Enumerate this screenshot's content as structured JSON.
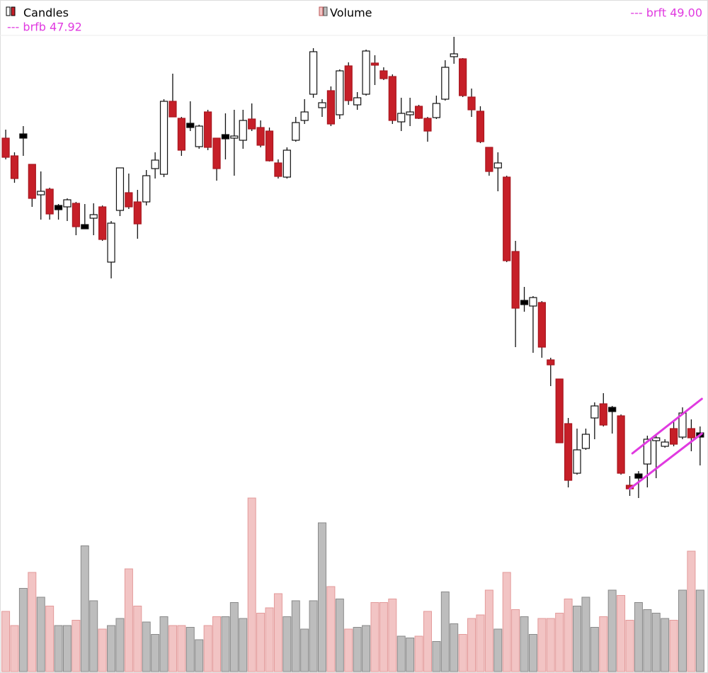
{
  "chart_data": {
    "type": "candlestick",
    "xlim": [
      -0.65,
      79.9
    ],
    "ylim": [
      46,
      59.5
    ],
    "y2lim": [
      0,
      10
    ],
    "series": [
      {
        "name": "Candles",
        "up_color": "#ffffff",
        "down_color": "#c61f28",
        "open": [
          56.18,
          55.68,
          56.24,
          55.44,
          54.58,
          54.74,
          54.22,
          54.24,
          54.34,
          53.68,
          53.92,
          54.24,
          52.68,
          54.14,
          54.64,
          54.38,
          54.38,
          55.32,
          55.16,
          57.22,
          56.74,
          56.54,
          55.94,
          56.92,
          56.18,
          56.22,
          56.18,
          56.12,
          56.72,
          56.48,
          56.38,
          55.48,
          55.08,
          56.12,
          56.68,
          57.42,
          57.04,
          57.52,
          56.84,
          58.22,
          57.12,
          57.42,
          58.3,
          58.08,
          57.92,
          56.64,
          56.84,
          57.08,
          56.74,
          56.76,
          57.28,
          58.48,
          58.42,
          57.34,
          56.94,
          55.92,
          55.34,
          55.08,
          52.98,
          51.54,
          51.44,
          51.54,
          49.92,
          49.38,
          48.12,
          46.72,
          47.42,
          48.28,
          48.68,
          48.52,
          48.34,
          46.38,
          46.64,
          46.98,
          47.64,
          47.48,
          47.98,
          47.74,
          47.98,
          47.8
        ],
        "high": [
          56.42,
          55.78,
          56.52,
          55.44,
          55.24,
          54.78,
          54.32,
          54.48,
          54.38,
          54.32,
          54.34,
          54.28,
          53.84,
          55.34,
          55.18,
          54.72,
          55.28,
          55.78,
          57.28,
          58.0,
          56.78,
          57.22,
          56.56,
          56.98,
          56.18,
          56.88,
          56.98,
          56.98,
          57.16,
          56.68,
          56.48,
          55.58,
          55.92,
          56.78,
          57.28,
          58.72,
          57.28,
          57.64,
          58.12,
          58.32,
          57.48,
          58.68,
          58.52,
          58.18,
          57.98,
          57.32,
          57.32,
          57.12,
          56.78,
          57.38,
          58.38,
          59.04,
          58.44,
          57.58,
          57.08,
          55.92,
          55.78,
          55.12,
          53.28,
          51.98,
          51.72,
          51.58,
          49.98,
          49.38,
          48.28,
          47.98,
          47.98,
          48.72,
          48.98,
          48.62,
          48.38,
          46.64,
          46.78,
          47.78,
          47.78,
          47.68,
          48.18,
          48.58,
          48.24,
          48.04
        ],
        "low": [
          55.58,
          54.92,
          55.68,
          54.24,
          53.88,
          53.88,
          53.88,
          53.84,
          53.44,
          53.62,
          53.44,
          53.28,
          52.22,
          53.98,
          54.18,
          53.34,
          54.28,
          55.04,
          55.08,
          56.78,
          55.68,
          56.38,
          55.88,
          55.84,
          54.98,
          55.58,
          55.12,
          55.88,
          56.38,
          55.92,
          55.52,
          55.04,
          55.04,
          56.08,
          56.58,
          57.32,
          56.78,
          56.52,
          56.72,
          57.12,
          56.98,
          57.38,
          57.68,
          57.82,
          56.58,
          56.38,
          56.52,
          56.72,
          56.08,
          56.72,
          57.24,
          58.28,
          57.34,
          56.78,
          56.04,
          55.12,
          54.68,
          52.68,
          50.28,
          51.28,
          50.12,
          49.98,
          49.18,
          47.58,
          46.32,
          46.68,
          47.38,
          47.68,
          48.04,
          47.84,
          46.68,
          46.08,
          46.02,
          46.32,
          46.58,
          47.44,
          47.48,
          47.68,
          47.34,
          46.94
        ],
        "close": [
          55.64,
          55.04,
          56.24,
          54.48,
          54.68,
          54.04,
          54.22,
          54.44,
          53.68,
          53.68,
          54.02,
          53.32,
          53.78,
          55.34,
          54.24,
          53.76,
          55.12,
          55.56,
          57.22,
          56.78,
          55.84,
          56.54,
          56.52,
          55.92,
          55.32,
          56.22,
          56.24,
          56.68,
          56.44,
          55.98,
          55.54,
          55.1,
          55.84,
          56.62,
          56.92,
          58.62,
          57.18,
          56.58,
          58.08,
          57.24,
          57.32,
          58.64,
          58.24,
          57.86,
          56.68,
          56.88,
          56.92,
          56.74,
          56.38,
          57.16,
          58.18,
          58.56,
          57.38,
          56.98,
          56.08,
          55.24,
          55.48,
          52.72,
          51.38,
          51.54,
          51.68,
          50.28,
          49.78,
          47.58,
          46.52,
          47.38,
          47.82,
          48.62,
          48.08,
          48.52,
          46.72,
          46.28,
          46.64,
          47.68,
          47.72,
          47.6,
          47.54,
          48.42,
          47.72,
          47.8
        ]
      },
      {
        "name": "Volume",
        "axis": "y2",
        "up_color": "#bdbdbd",
        "down_color": "#f2c4c4",
        "values": [
          3.4,
          2.6,
          4.7,
          5.6,
          4.2,
          3.7,
          2.6,
          2.6,
          2.9,
          7.1,
          4.0,
          2.4,
          2.6,
          3.0,
          5.8,
          3.7,
          2.8,
          2.1,
          3.1,
          2.6,
          2.6,
          2.5,
          1.8,
          2.6,
          3.1,
          3.1,
          3.9,
          3.0,
          9.8,
          3.3,
          3.6,
          4.4,
          3.1,
          4.0,
          2.4,
          4.0,
          8.4,
          4.8,
          4.1,
          2.4,
          2.5,
          2.6,
          3.9,
          3.9,
          4.1,
          2.0,
          1.9,
          2.0,
          3.4,
          1.7,
          4.5,
          2.7,
          2.1,
          3.0,
          3.2,
          4.6,
          2.4,
          5.6,
          3.5,
          3.1,
          2.1,
          3.0,
          3.0,
          3.3,
          4.1,
          3.7,
          4.2,
          2.5,
          3.1,
          4.6,
          4.3,
          2.9,
          3.9,
          3.5,
          3.3,
          3.0,
          2.9,
          4.6,
          6.8,
          4.6
        ]
      }
    ],
    "lines": [
      {
        "label": "--- brfb 47.92",
        "color": "#e03ae0",
        "x": [
          71.0,
          79.2
        ],
        "y": [
          46.28,
          47.84
        ]
      },
      {
        "label": "--- brft 49.00",
        "color": "#e03ae0",
        "x": [
          71.3,
          79.2
        ],
        "y": [
          47.28,
          48.82
        ]
      }
    ]
  }
}
